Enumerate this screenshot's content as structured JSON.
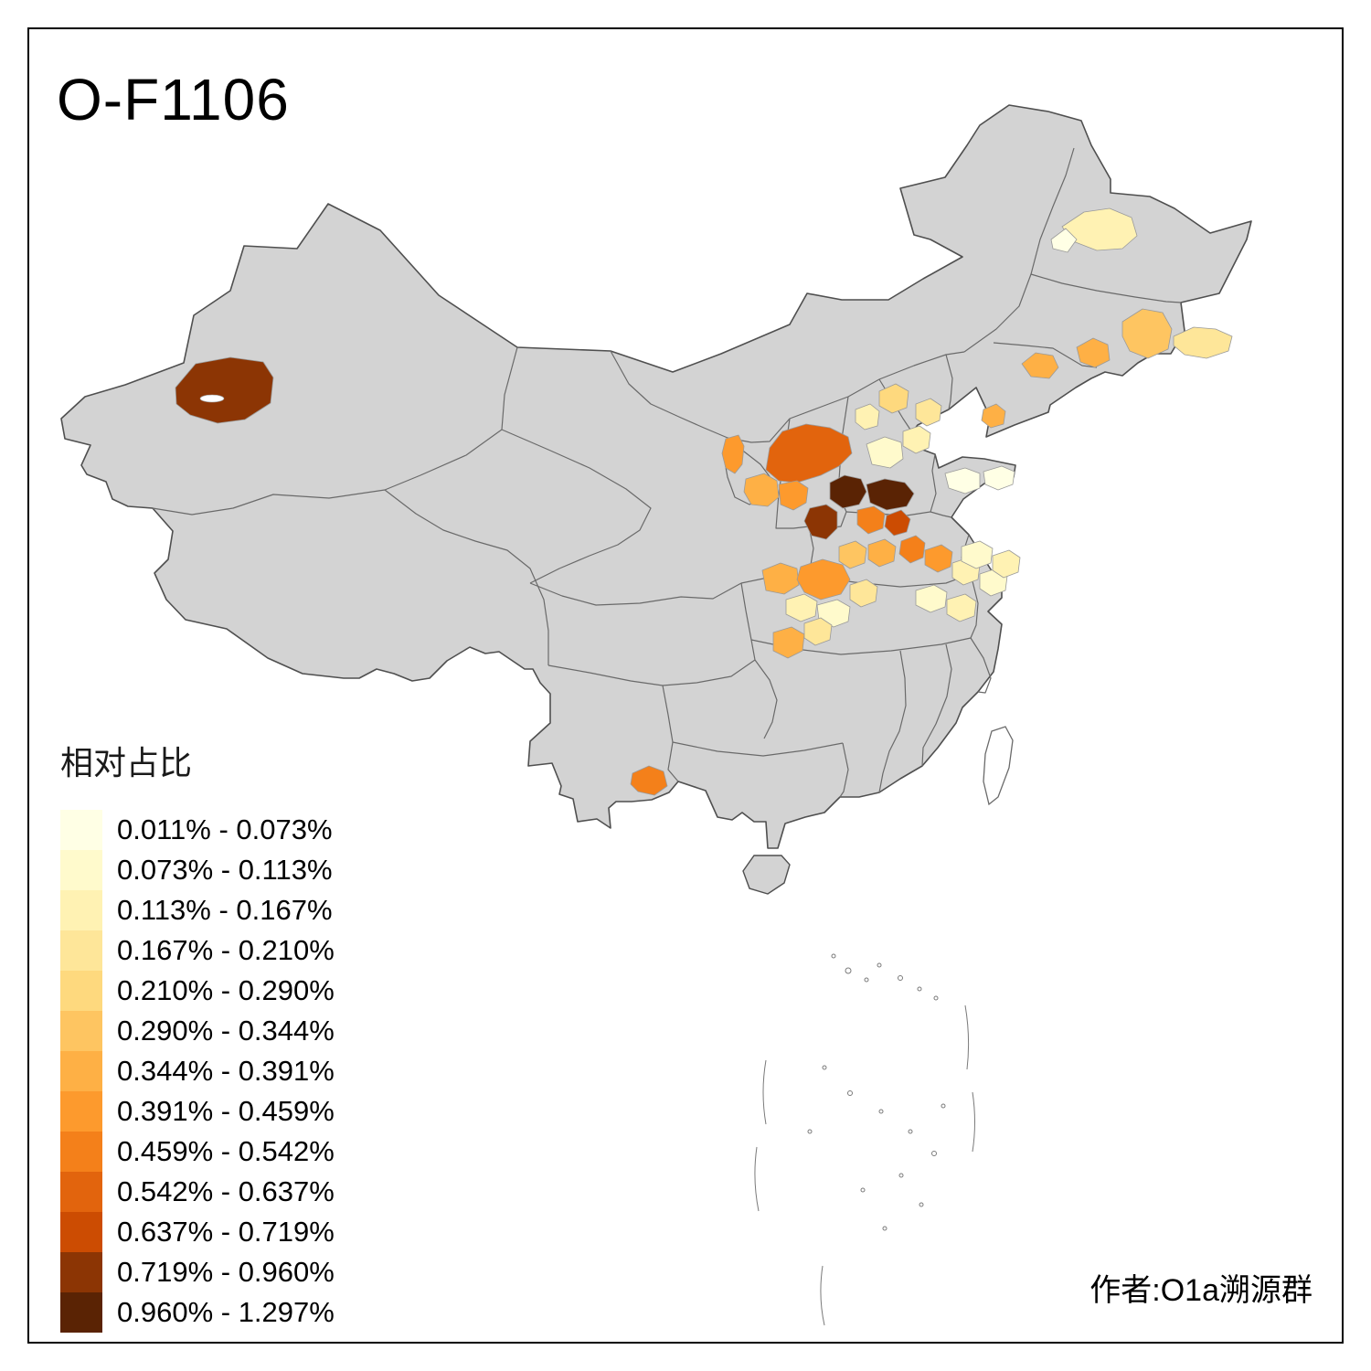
{
  "title": "O-F1106",
  "author": "作者:O1a溯源群",
  "legend": {
    "title": "相对占比",
    "classes": [
      {
        "label": "0.011% - 0.073%",
        "color": "#FFFFE5"
      },
      {
        "label": "0.073% - 0.113%",
        "color": "#FFFACC"
      },
      {
        "label": "0.113% - 0.167%",
        "color": "#FFF2B3"
      },
      {
        "label": "0.167% - 0.210%",
        "color": "#FEE699"
      },
      {
        "label": "0.210% - 0.290%",
        "color": "#FED97E"
      },
      {
        "label": "0.290% - 0.344%",
        "color": "#FEC561"
      },
      {
        "label": "0.344% - 0.391%",
        "color": "#FEB045"
      },
      {
        "label": "0.391% - 0.459%",
        "color": "#FD9A2D"
      },
      {
        "label": "0.459% - 0.542%",
        "color": "#F4801A"
      },
      {
        "label": "0.542% - 0.637%",
        "color": "#E2640D"
      },
      {
        "label": "0.637% - 0.719%",
        "color": "#CC4C02"
      },
      {
        "label": "0.719% - 0.960%",
        "color": "#8C3504"
      },
      {
        "label": "0.960% - 1.297%",
        "color": "#5A2304"
      }
    ]
  },
  "map": {
    "base_fill": "#D3D3D3",
    "island_fill": "#FFFFFF",
    "national_border": "#4F4F4F",
    "province_border": "#6A6A6A",
    "region_border": "#9A9A9A",
    "regions": {
      "r1": 11,
      "r2": 6,
      "r3": 6,
      "r4": 5,
      "r5": 3,
      "r6": 2,
      "r6b": 0,
      "r7": 6,
      "r8": 9,
      "r9": 12,
      "r10": 12,
      "r11": 11,
      "r12": 8,
      "r13": 10,
      "r14": 7,
      "r15": 6,
      "r16": 7,
      "r17a": 1,
      "r17b": 2,
      "r17c": 3,
      "r17d": 4,
      "r17e": 2,
      "r18": 0,
      "r18b": 0,
      "r19a": 8,
      "r19b": 7,
      "r19c": 2,
      "r19d": 1,
      "r20a": 6,
      "r20b": 7,
      "r20c": 3,
      "r20d": 2,
      "r20e": 1,
      "r20f": 6,
      "r21": 3,
      "r22a": 1,
      "r22b": 2,
      "r23": 8,
      "r24a": 1,
      "r24b": 2,
      "r26": 5,
      "r27": 6
    }
  }
}
